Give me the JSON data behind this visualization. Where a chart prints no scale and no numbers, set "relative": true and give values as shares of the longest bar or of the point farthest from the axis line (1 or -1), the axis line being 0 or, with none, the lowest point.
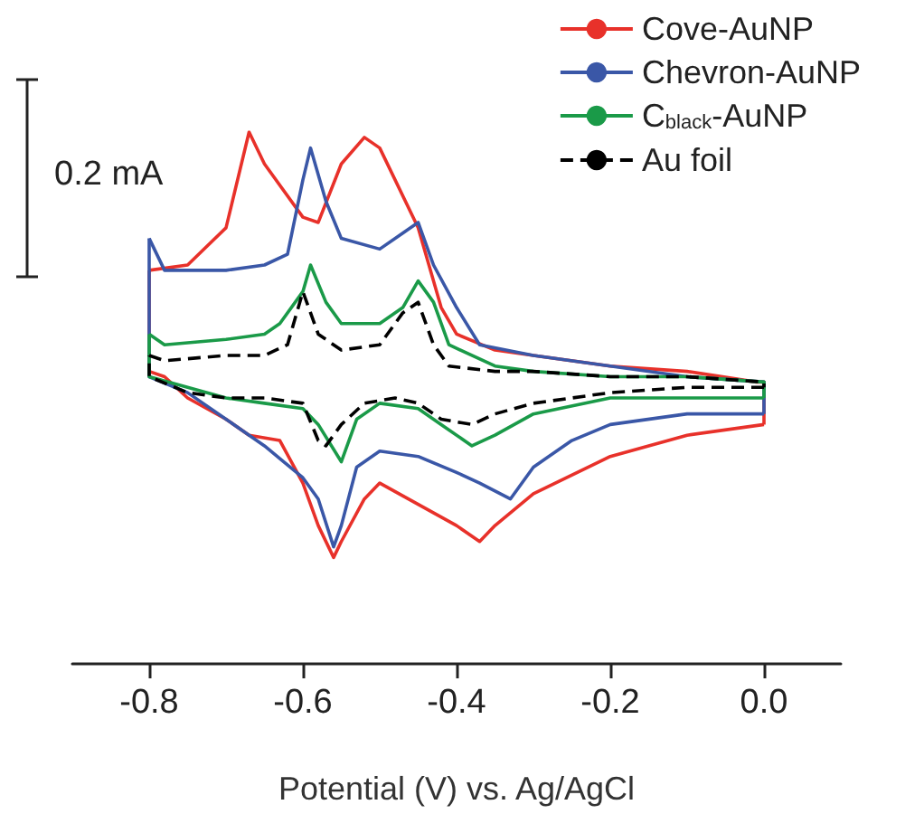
{
  "chart_data": {
    "type": "line",
    "relative": true,
    "xlabel": "Potential (V) vs. Ag/AgCl",
    "xlim": [
      -0.9,
      0.1
    ],
    "xticks": [
      {
        "value": -0.8,
        "label": "-0.8"
      },
      {
        "value": -0.6,
        "label": "-0.6"
      },
      {
        "value": -0.4,
        "label": "-0.4"
      },
      {
        "value": -0.2,
        "label": "-0.2"
      },
      {
        "value": 0,
        "label": "0.0"
      }
    ],
    "legend": "top right",
    "marker": "none",
    "grid": false,
    "annotations": [
      "0.2 mA"
    ],
    "series": [
      {
        "name": "Cove-AuNP",
        "color": "#e8312a",
        "line_style": "solid",
        "x": [
          -0.8,
          -0.75,
          -0.7,
          -0.67,
          -0.65,
          -0.6,
          -0.58,
          -0.55,
          -0.52,
          -0.5,
          -0.45,
          -0.42,
          -0.4,
          -0.35,
          -0.3,
          -0.2,
          -0.1,
          -0.01,
          0,
          0
        ],
        "values": [
          0.74,
          0.75,
          0.82,
          1.0,
          0.94,
          0.84,
          0.83,
          0.94,
          0.99,
          0.97,
          0.82,
          0.67,
          0.62,
          0.59,
          0.58,
          0.56,
          0.55,
          0.53,
          0.53,
          0.45
        ]
      },
      {
        "color": "#e8312a",
        "line_style": "solid",
        "x": [
          0,
          -0.1,
          -0.2,
          -0.3,
          -0.35,
          -0.37,
          -0.4,
          -0.45,
          -0.5,
          -0.52,
          -0.55,
          -0.56,
          -0.58,
          -0.6,
          -0.63,
          -0.67,
          -0.7,
          -0.75,
          -0.78,
          -0.8,
          -0.8
        ],
        "values": [
          0.45,
          0.43,
          0.39,
          0.32,
          0.26,
          0.23,
          0.26,
          0.3,
          0.34,
          0.31,
          0.23,
          0.2,
          0.26,
          0.34,
          0.42,
          0.43,
          0.46,
          0.5,
          0.54,
          0.55,
          0.74
        ]
      },
      {
        "name": "Chevron-AuNP",
        "color": "#3a57a7",
        "line_style": "solid",
        "x": [
          -0.8,
          -0.78,
          -0.75,
          -0.7,
          -0.65,
          -0.62,
          -0.6,
          -0.59,
          -0.57,
          -0.55,
          -0.5,
          -0.47,
          -0.45,
          -0.43,
          -0.4,
          -0.37,
          -0.3,
          -0.2,
          -0.1,
          0,
          0
        ],
        "values": [
          0.8,
          0.74,
          0.74,
          0.74,
          0.75,
          0.77,
          0.91,
          0.97,
          0.87,
          0.8,
          0.78,
          0.81,
          0.83,
          0.75,
          0.67,
          0.6,
          0.58,
          0.56,
          0.54,
          0.53,
          0.47
        ]
      },
      {
        "color": "#3a57a7",
        "line_style": "solid",
        "x": [
          0,
          -0.1,
          -0.2,
          -0.25,
          -0.3,
          -0.33,
          -0.37,
          -0.4,
          -0.45,
          -0.5,
          -0.53,
          -0.55,
          -0.56,
          -0.58,
          -0.6,
          -0.65,
          -0.7,
          -0.75,
          -0.8,
          -0.8
        ],
        "values": [
          0.47,
          0.47,
          0.45,
          0.42,
          0.37,
          0.31,
          0.34,
          0.36,
          0.39,
          0.4,
          0.37,
          0.26,
          0.22,
          0.31,
          0.35,
          0.41,
          0.46,
          0.51,
          0.54,
          0.8
        ]
      },
      {
        "name": "C$_{black}$-AuNP",
        "color": "#1a9a48",
        "line_style": "solid",
        "x": [
          -0.8,
          -0.78,
          -0.7,
          -0.65,
          -0.63,
          -0.6,
          -0.59,
          -0.57,
          -0.55,
          -0.5,
          -0.47,
          -0.45,
          -0.43,
          -0.41,
          -0.35,
          -0.3,
          -0.2,
          -0.1,
          0,
          0
        ],
        "values": [
          0.62,
          0.6,
          0.61,
          0.62,
          0.64,
          0.7,
          0.75,
          0.68,
          0.64,
          0.64,
          0.67,
          0.72,
          0.68,
          0.6,
          0.56,
          0.55,
          0.54,
          0.54,
          0.53,
          0.5
        ]
      },
      {
        "color": "#1a9a48",
        "line_style": "solid",
        "x": [
          0,
          -0.1,
          -0.2,
          -0.3,
          -0.35,
          -0.38,
          -0.42,
          -0.45,
          -0.5,
          -0.53,
          -0.55,
          -0.58,
          -0.6,
          -0.65,
          -0.7,
          -0.75,
          -0.8,
          -0.8
        ],
        "values": [
          0.5,
          0.5,
          0.5,
          0.47,
          0.43,
          0.41,
          0.45,
          0.48,
          0.49,
          0.46,
          0.38,
          0.45,
          0.48,
          0.49,
          0.5,
          0.52,
          0.54,
          0.62
        ]
      },
      {
        "name": "Au foil",
        "color": "#000000",
        "line_style": "dashed",
        "x": [
          -0.8,
          -0.78,
          -0.7,
          -0.65,
          -0.62,
          -0.6,
          -0.58,
          -0.55,
          -0.5,
          -0.47,
          -0.45,
          -0.43,
          -0.41,
          -0.35,
          -0.3,
          -0.2,
          -0.1,
          0,
          0
        ],
        "values": [
          0.58,
          0.57,
          0.58,
          0.58,
          0.6,
          0.7,
          0.62,
          0.59,
          0.6,
          0.66,
          0.68,
          0.6,
          0.56,
          0.55,
          0.55,
          0.54,
          0.54,
          0.53,
          0.52
        ]
      },
      {
        "color": "#000000",
        "line_style": "dashed",
        "x": [
          0,
          -0.1,
          -0.2,
          -0.3,
          -0.35,
          -0.38,
          -0.42,
          -0.45,
          -0.48,
          -0.52,
          -0.55,
          -0.57,
          -0.58,
          -0.6,
          -0.65,
          -0.7,
          -0.75,
          -0.8,
          -0.8
        ],
        "values": [
          0.52,
          0.52,
          0.51,
          0.49,
          0.47,
          0.45,
          0.46,
          0.49,
          0.5,
          0.49,
          0.45,
          0.41,
          0.42,
          0.49,
          0.5,
          0.5,
          0.51,
          0.54,
          0.58
        ]
      }
    ]
  }
}
